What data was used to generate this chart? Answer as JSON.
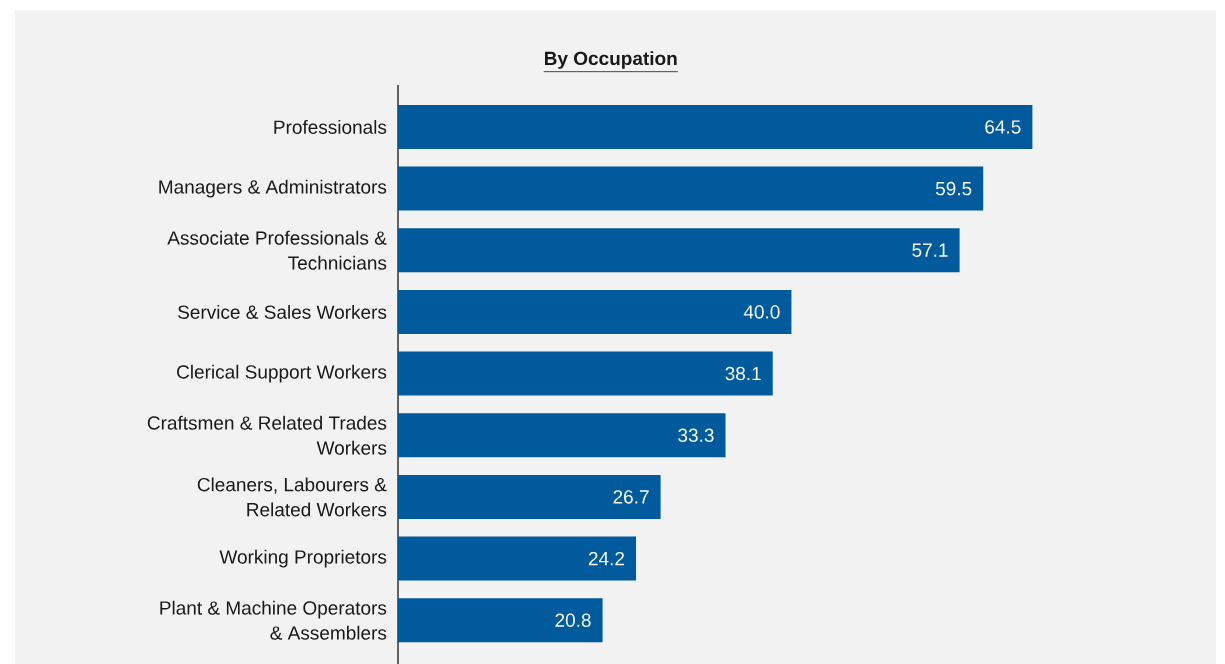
{
  "chart_data": {
    "type": "bar",
    "orientation": "horizontal",
    "title": "By Occupation",
    "categories": [
      "Professionals",
      "Managers & Administrators",
      "Associate Professionals & Technicians",
      "Service & Sales Workers",
      "Clerical Support Workers",
      "Craftsmen & Related Trades Workers",
      "Cleaners, Labourers & Related Workers",
      "Working Proprietors",
      "Plant & Machine Operators & Assemblers"
    ],
    "values": [
      64.5,
      59.5,
      57.1,
      40.0,
      38.1,
      33.3,
      26.7,
      24.2,
      20.8
    ],
    "value_labels": [
      "64.5",
      "59.5",
      "57.1",
      "40.0",
      "38.1",
      "33.3",
      "26.7",
      "24.2",
      "20.8"
    ],
    "color": "#005a9c"
  }
}
